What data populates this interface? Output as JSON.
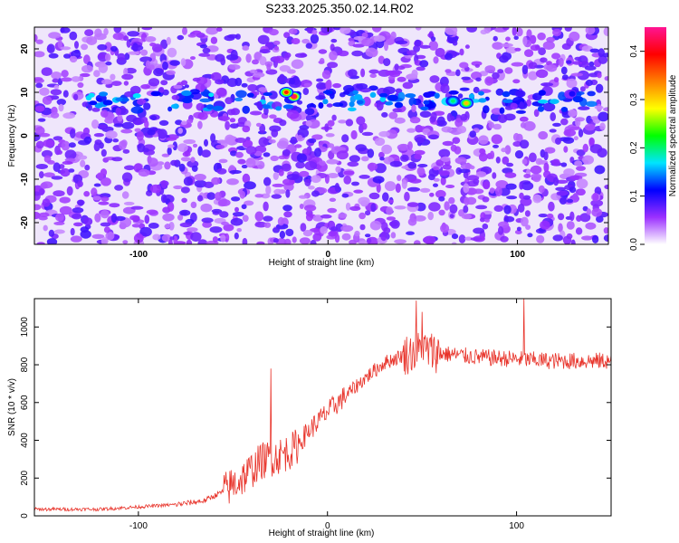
{
  "title": "S233.2025.350.02.14.R02",
  "chart_data": [
    {
      "type": "heatmap",
      "xlabel": "Height of straight line (km)",
      "ylabel": "Frequency (Hz)",
      "xlim": [
        -155,
        148
      ],
      "ylim": [
        -25,
        25
      ],
      "xticks": [
        -100,
        0,
        100
      ],
      "xtick_labels": [
        "-100",
        "0",
        "100"
      ],
      "yticks": [
        -20,
        -10,
        0,
        10,
        20
      ],
      "ytick_labels": [
        "-20",
        "-10",
        "0",
        "10",
        "20"
      ],
      "colorbar": {
        "label": "Normalized spectral amplitude",
        "range": [
          0.0,
          0.45
        ],
        "ticks": [
          0.0,
          0.1,
          0.2,
          0.3,
          0.4
        ],
        "tick_labels": [
          "0.0",
          "0.1",
          "0.2",
          "0.3",
          "0.4"
        ],
        "colors": [
          "#ffffff",
          "#9b30ff",
          "#0000ff",
          "#00e5ff",
          "#00ff00",
          "#ffff00",
          "#ff8000",
          "#ff0000",
          "#ff1493"
        ]
      },
      "ridge": {
        "frequency": 8,
        "x_range": [
          -130,
          140
        ]
      },
      "hot_spots": [
        {
          "x": -18,
          "y": 9,
          "value": 0.44
        },
        {
          "x": -22,
          "y": 10,
          "value": 0.38
        },
        {
          "x": 73,
          "y": 7.5,
          "value": 0.31
        },
        {
          "x": 66,
          "y": 8,
          "value": 0.2
        }
      ]
    },
    {
      "type": "line",
      "xlabel": "Height of straight line (km)",
      "ylabel": "SNR (10 * v/v)",
      "xlim": [
        -155,
        150
      ],
      "ylim": [
        0,
        1150
      ],
      "xticks": [
        -100,
        0,
        100
      ],
      "xtick_labels": [
        "-100",
        "0",
        "100"
      ],
      "yticks": [
        0,
        200,
        400,
        600,
        800,
        1000
      ],
      "ytick_labels": [
        "0",
        "200",
        "400",
        "600",
        "800",
        "1000"
      ],
      "color": "#e8332a",
      "trend_x": [
        -155,
        -120,
        -80,
        -65,
        -55,
        -45,
        -35,
        -25,
        -18,
        -10,
        0,
        10,
        20,
        30,
        40,
        50,
        60,
        80,
        100,
        120,
        150
      ],
      "trend_y": [
        35,
        35,
        60,
        80,
        130,
        200,
        290,
        320,
        350,
        450,
        550,
        640,
        730,
        810,
        850,
        880,
        860,
        840,
        830,
        820,
        820
      ],
      "spikes": [
        {
          "x": -30,
          "y": 780
        },
        {
          "x": 47,
          "y": 1140
        },
        {
          "x": 50,
          "y": 1080
        },
        {
          "x": 104,
          "y": 1150
        }
      ],
      "gridlines": false
    }
  ]
}
